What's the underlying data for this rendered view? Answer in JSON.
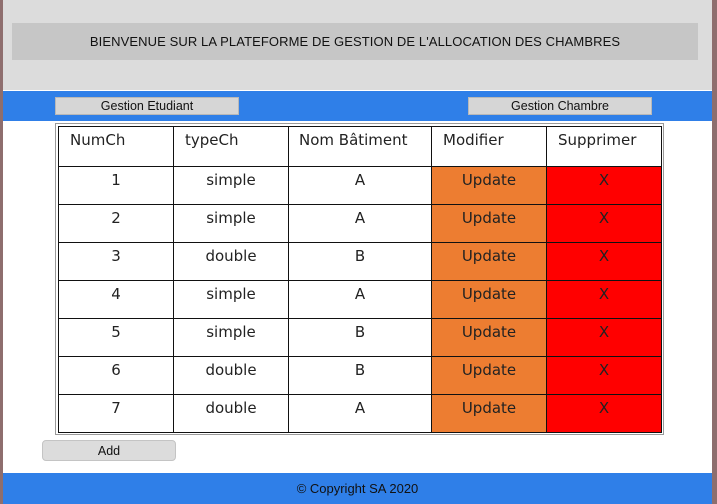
{
  "header": {
    "title": "BIENVENUE SUR LA PLATEFORME DE GESTION  DE L'ALLOCATION DES CHAMBRES"
  },
  "nav": {
    "etudiant_label": "Gestion Etudiant",
    "chambre_label": "Gestion Chambre"
  },
  "table": {
    "headers": [
      "NumCh",
      "typeCh",
      "Nom Bâtiment",
      "Modifier",
      "Supprimer"
    ],
    "rows": [
      {
        "num": "1",
        "type": "simple",
        "batiment": "A",
        "update": "Update",
        "delete": "X"
      },
      {
        "num": "2",
        "type": "simple",
        "batiment": "A",
        "update": "Update",
        "delete": "X"
      },
      {
        "num": "3",
        "type": "double",
        "batiment": "B",
        "update": "Update",
        "delete": "X"
      },
      {
        "num": "4",
        "type": "simple",
        "batiment": "A",
        "update": "Update",
        "delete": "X"
      },
      {
        "num": "5",
        "type": "simple",
        "batiment": "B",
        "update": "Update",
        "delete": "X"
      },
      {
        "num": "6",
        "type": "double",
        "batiment": "B",
        "update": "Update",
        "delete": "X"
      },
      {
        "num": "7",
        "type": "double",
        "batiment": "A",
        "update": "Update",
        "delete": "X"
      }
    ]
  },
  "actions": {
    "add_label": "Add"
  },
  "footer": {
    "copyright": "© Copyright SA 2020"
  },
  "colors": {
    "nav_blue": "#2f7fe8",
    "update_orange": "#ed7d31",
    "delete_red": "#ff0000"
  }
}
